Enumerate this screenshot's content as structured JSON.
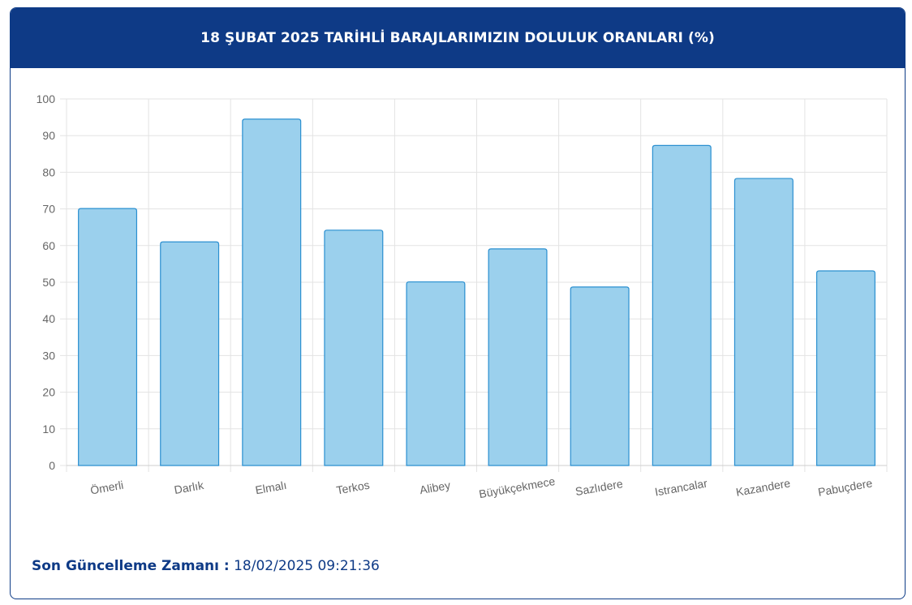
{
  "title": "18 ŞUBAT 2025 TARİHLİ BARAJLARIMIZIN DOLULUK ORANLARI (%)",
  "footer": {
    "label": "Son Güncelleme Zamanı :",
    "value": "18/02/2025 09:21:36"
  },
  "colors": {
    "header_bg": "#0e3a86",
    "bar_fill": "#9bd0ed",
    "bar_stroke": "#2a8fd0",
    "grid": "#e3e3e3"
  },
  "chart_data": {
    "type": "bar",
    "categories": [
      "Ömerli",
      "Darlık",
      "Elmalı",
      "Terkos",
      "Alibey",
      "Büyükçekmece",
      "Sazlıdere",
      "Istrancalar",
      "Kazandere",
      "Pabuçdere"
    ],
    "values": [
      70.1,
      61.0,
      94.5,
      64.2,
      50.1,
      59.1,
      48.7,
      87.3,
      78.3,
      53.1
    ],
    "ylim": [
      0,
      100
    ],
    "yticks": [
      "0",
      "10",
      "20",
      "30",
      "40",
      "50",
      "60",
      "70",
      "80",
      "90",
      "100"
    ],
    "grid": true
  }
}
